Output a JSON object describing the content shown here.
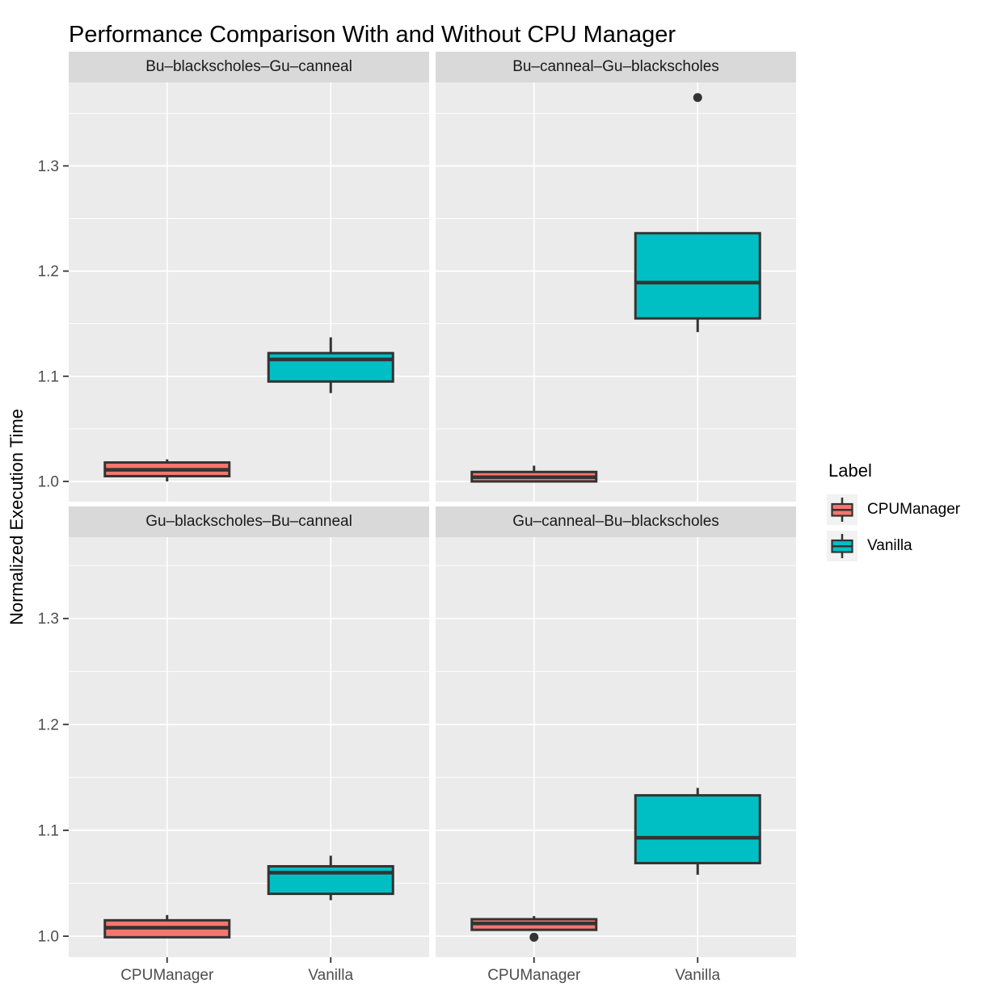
{
  "title": "Performance Comparison With and Without CPU Manager",
  "y_axis": {
    "title": "Normalized Execution Time",
    "ticks": [
      "1.0",
      "1.1",
      "1.2",
      "1.3"
    ],
    "tick_values": [
      1.0,
      1.1,
      1.2,
      1.3
    ]
  },
  "x_axis": {
    "title": "",
    "categories": [
      "CPUManager",
      "Vanilla"
    ]
  },
  "legend": {
    "title": "Label",
    "items": [
      {
        "label": "CPUManager",
        "color": "#F8766D"
      },
      {
        "label": "Vanilla",
        "color": "#00BFC4"
      }
    ]
  },
  "colors": {
    "panel_background": "#EBEBEB",
    "strip_background": "#D9D9D9",
    "gridline": "#FFFFFF",
    "box_border": "#333333",
    "outlier": "#333333",
    "tick_mark": "#333333",
    "tick_label": "#4D4D4D",
    "legend_key_background": "#F2F2F2",
    "series_cpumanager": "#F8766D",
    "series_vanilla": "#00BFC4"
  },
  "chart_data": {
    "type": "boxplot",
    "title": "Performance Comparison With and Without CPU Manager",
    "xlabel": "",
    "ylabel": "Normalized Execution Time",
    "ylim": [
      0.98,
      1.38
    ],
    "yticks": [
      1.0,
      1.1,
      1.2,
      1.3
    ],
    "yticks_minor": [
      1.05,
      1.15,
      1.25,
      1.35
    ],
    "grid": "white major and minor horizontal lines, white vertical lines at category centers, on gray panel",
    "legend_position": "right",
    "categories": [
      "CPUManager",
      "Vanilla"
    ],
    "facets": [
      {
        "label": "Bu–blackscholes–Gu–canneal",
        "series": [
          {
            "name": "CPUManager",
            "whislo": 1.0,
            "q1": 1.005,
            "med": 1.011,
            "q3": 1.018,
            "whishi": 1.021,
            "outliers": []
          },
          {
            "name": "Vanilla",
            "whislo": 1.084,
            "q1": 1.095,
            "med": 1.116,
            "q3": 1.122,
            "whishi": 1.137,
            "outliers": []
          }
        ]
      },
      {
        "label": "Bu–canneal–Gu–blackscholes",
        "series": [
          {
            "name": "CPUManager",
            "whislo": 1.0,
            "q1": 1.0,
            "med": 1.004,
            "q3": 1.009,
            "whishi": 1.015,
            "outliers": []
          },
          {
            "name": "Vanilla",
            "whislo": 1.142,
            "q1": 1.155,
            "med": 1.189,
            "q3": 1.236,
            "whishi": 1.236,
            "outliers": [
              1.365
            ]
          }
        ]
      },
      {
        "label": "Gu–blackscholes–Bu–canneal",
        "series": [
          {
            "name": "CPUManager",
            "whislo": 0.999,
            "q1": 0.999,
            "med": 1.008,
            "q3": 1.015,
            "whishi": 1.02,
            "outliers": []
          },
          {
            "name": "Vanilla",
            "whislo": 1.034,
            "q1": 1.04,
            "med": 1.06,
            "q3": 1.066,
            "whishi": 1.076,
            "outliers": []
          }
        ]
      },
      {
        "label": "Gu–canneal–Bu–blackscholes",
        "series": [
          {
            "name": "CPUManager",
            "whislo": 1.006,
            "q1": 1.006,
            "med": 1.012,
            "q3": 1.016,
            "whishi": 1.019,
            "outliers": [
              0.999
            ]
          },
          {
            "name": "Vanilla",
            "whislo": 1.058,
            "q1": 1.069,
            "med": 1.093,
            "q3": 1.133,
            "whishi": 1.14,
            "outliers": []
          }
        ]
      }
    ]
  }
}
